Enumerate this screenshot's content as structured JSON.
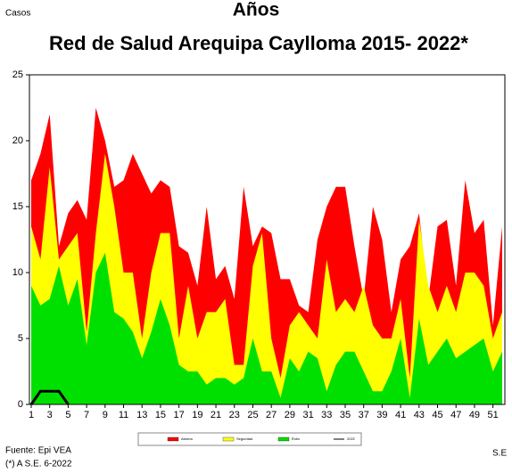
{
  "chart_data": {
    "type": "area",
    "title": "Años",
    "subtitle": "Red  de Salud Arequipa Caylloma 2015- 2022*",
    "y_label": "Casos",
    "x_label": "S.E",
    "source": "Fuente: Epi VEA",
    "note": "(*) A S.E. 6-2022",
    "x": [
      1,
      2,
      3,
      4,
      5,
      6,
      7,
      8,
      9,
      10,
      11,
      12,
      13,
      14,
      15,
      16,
      17,
      18,
      19,
      20,
      21,
      22,
      23,
      24,
      25,
      26,
      27,
      28,
      29,
      30,
      31,
      32,
      33,
      34,
      35,
      36,
      37,
      38,
      39,
      40,
      41,
      42,
      43,
      44,
      45,
      46,
      47,
      48,
      49,
      50,
      51,
      52
    ],
    "xlim": [
      1,
      52
    ],
    "xticks": [
      1,
      3,
      5,
      7,
      9,
      11,
      13,
      15,
      17,
      19,
      21,
      23,
      25,
      27,
      29,
      31,
      33,
      35,
      37,
      39,
      41,
      43,
      45,
      47,
      49,
      51
    ],
    "ylim": [
      0,
      25
    ],
    "yticks": [
      0,
      5,
      10,
      15,
      20,
      25
    ],
    "series": [
      {
        "name": "Alarma",
        "color": "#ff0000",
        "values": [
          17,
          19,
          22,
          12,
          14.5,
          15.5,
          14,
          22.5,
          20,
          16.5,
          17,
          19,
          17.5,
          16,
          17,
          16.5,
          12,
          11.5,
          9,
          15,
          9.5,
          10.5,
          8,
          16.5,
          12,
          13.5,
          13,
          9.5,
          9.5,
          7.5,
          7,
          12.5,
          15,
          16.5,
          16.5,
          12,
          8,
          15,
          12.5,
          7,
          11,
          12,
          14.5,
          8,
          13.5,
          14,
          9,
          17,
          13,
          14,
          6,
          13.5
        ]
      },
      {
        "name": "Seguridad",
        "color": "#ffff00",
        "values": [
          13.5,
          11,
          18,
          11,
          12,
          13,
          5.5,
          13,
          19,
          15,
          10,
          10,
          5,
          10,
          13,
          13,
          5,
          9,
          5,
          7,
          7,
          8,
          3,
          3,
          10.5,
          13,
          5,
          2,
          6,
          7,
          6,
          5,
          11,
          7,
          8,
          7,
          9,
          6,
          5,
          5,
          8,
          2,
          14,
          9,
          7,
          9,
          7,
          10,
          10,
          9,
          5,
          7
        ]
      },
      {
        "name": "Éxito",
        "color": "#00e000",
        "values": [
          9,
          7.5,
          8,
          10.5,
          7.5,
          9.5,
          4.5,
          10,
          11.5,
          7,
          6.5,
          5.5,
          3.5,
          5.5,
          8,
          6,
          3,
          2.5,
          2.5,
          1.5,
          2,
          2,
          1.5,
          2,
          5,
          2.5,
          2.5,
          0.5,
          3.5,
          2.5,
          4,
          3.5,
          1,
          3,
          4,
          4,
          2.5,
          1,
          1,
          2.5,
          5,
          0.5,
          6.5,
          3,
          4,
          5,
          3.5,
          4,
          4.5,
          5,
          2.5,
          4
        ]
      },
      {
        "name": "2022",
        "color": "#000000",
        "type": "line",
        "values": [
          0,
          1,
          1,
          1,
          0,
          null,
          null,
          null,
          null,
          null,
          null,
          null,
          null,
          null,
          null,
          null,
          null,
          null,
          null,
          null,
          null,
          null,
          null,
          null,
          null,
          null,
          null,
          null,
          null,
          null,
          null,
          null,
          null,
          null,
          null,
          null,
          null,
          null,
          null,
          null,
          null,
          null,
          null,
          null,
          null,
          null,
          null,
          null,
          null,
          null,
          null,
          null
        ]
      }
    ]
  }
}
